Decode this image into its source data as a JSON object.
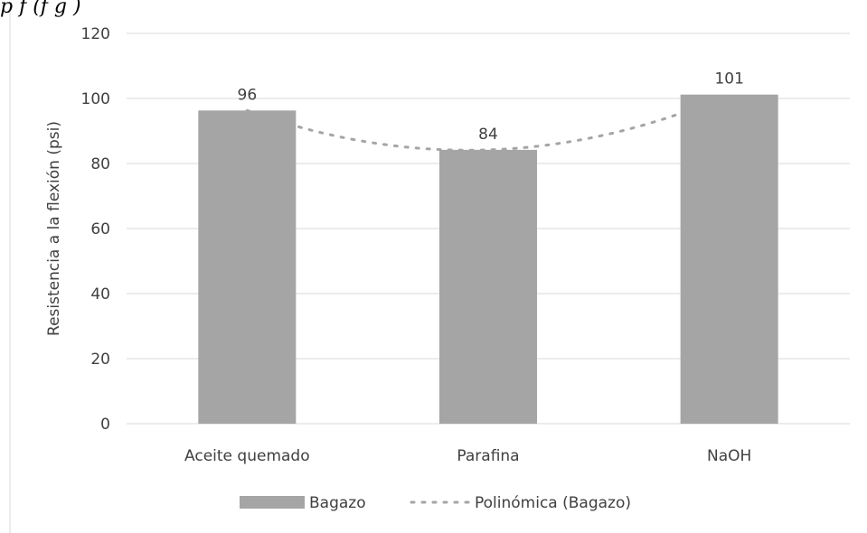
{
  "header_clip": {
    "text": "p                    f                              (f              g   )"
  },
  "colors": {
    "bar": "#a5a5a5",
    "trendline": "#a5a5a5",
    "grid": "#d9d9d9",
    "text": "#404040",
    "frame": "#d9d9d9"
  },
  "chart_data": {
    "type": "bar",
    "categories": [
      "Aceite quemado",
      "Parafina",
      "NaOH"
    ],
    "series": [
      {
        "name": "Bagazo",
        "values": [
          96.3,
          84.2,
          101.2
        ]
      }
    ],
    "data_labels": [
      "96",
      "84",
      "101"
    ],
    "trendline": {
      "name": "Polinómica (Bagazo)",
      "type": "polynomial",
      "order": 2,
      "style": "dotted"
    },
    "title": "",
    "xlabel": "",
    "ylabel": "Resistencia a la flexión (psi)",
    "ylim": [
      0,
      120
    ],
    "yticks": [
      0,
      20,
      40,
      60,
      80,
      100,
      120
    ],
    "ytick_labels": [
      "0",
      "20",
      "40",
      "60",
      "80",
      "100",
      "120"
    ],
    "grid": true,
    "legend_position": "bottom"
  }
}
